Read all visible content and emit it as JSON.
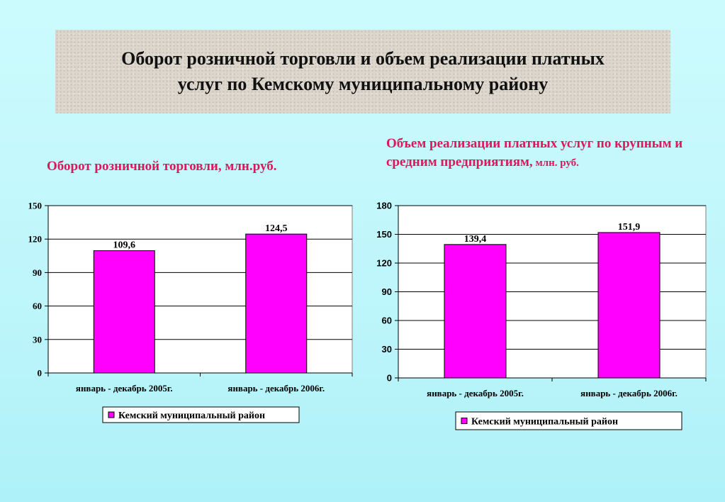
{
  "header": {
    "title_line1": "Оборот розничной торговли и объем реализации платных",
    "title_line2": "услуг по Кемскому муниципальному району"
  },
  "left_panel": {
    "subtitle": "Оборот розничной торговли, млн.руб."
  },
  "right_panel": {
    "subtitle_main": "Объем реализации платных услуг по крупным и средним предприятиям,",
    "subtitle_small": " млн. руб."
  },
  "colors": {
    "bar": "#ff00ff",
    "bar_stroke": "#000000",
    "subtitle": "#e0155a",
    "plot_bg": "#ffffff",
    "grid": "#000000"
  },
  "chart_data": [
    {
      "type": "bar",
      "categories": [
        "январь - декабрь 2005г.",
        "январь - декабрь 2006г."
      ],
      "series": [
        {
          "name": "Кемский муниципальный район",
          "values": [
            109.6,
            124.5
          ],
          "labels": [
            "109,6",
            "124,5"
          ]
        }
      ],
      "ylim": [
        0,
        150
      ],
      "yticks": [
        0,
        30,
        60,
        90,
        120,
        150
      ],
      "grid": true,
      "legend": "bottom"
    },
    {
      "type": "bar",
      "categories": [
        "январь - декабрь  2005г.",
        "январь - декабрь  2006г."
      ],
      "series": [
        {
          "name": "Кемский муниципальный район",
          "values": [
            139.4,
            151.9
          ],
          "labels": [
            "139,4",
            "151,9"
          ]
        }
      ],
      "ylim": [
        0,
        180
      ],
      "yticks": [
        0,
        30,
        60,
        90,
        120,
        150,
        180
      ],
      "grid": true,
      "legend": "bottom"
    }
  ]
}
